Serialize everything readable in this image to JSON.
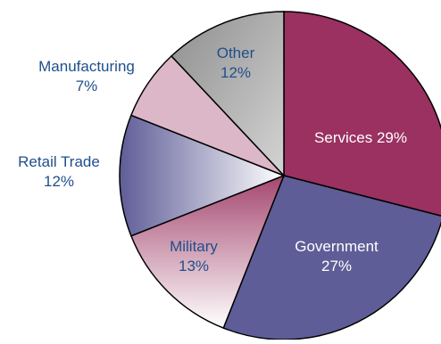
{
  "chart_data": {
    "type": "pie",
    "title": "",
    "slices": [
      {
        "label": "Services",
        "value": 29,
        "display": "Services 29%",
        "color": "#9a3161"
      },
      {
        "label": "Government",
        "value": 27,
        "display_lines": [
          "Government",
          "27%"
        ],
        "color": "#5f5d97"
      },
      {
        "label": "Military",
        "value": 13,
        "display_lines": [
          "Military",
          "13%"
        ],
        "color": "#b06a86"
      },
      {
        "label": "Retail Trade",
        "value": 12,
        "display_lines": [
          "Retail Trade",
          "12%"
        ],
        "color": "#7d7cae"
      },
      {
        "label": "Manufacturing",
        "value": 7,
        "display_lines": [
          "Manufacturing",
          "7%"
        ],
        "color": "#dcb7c8"
      },
      {
        "label": "Other",
        "value": 12,
        "display_lines": [
          "Other",
          "12%"
        ],
        "color": "#a4a4a4"
      }
    ],
    "label_colors": {
      "inside_light": "#ffffff",
      "outside": "#1f4f8b"
    }
  }
}
